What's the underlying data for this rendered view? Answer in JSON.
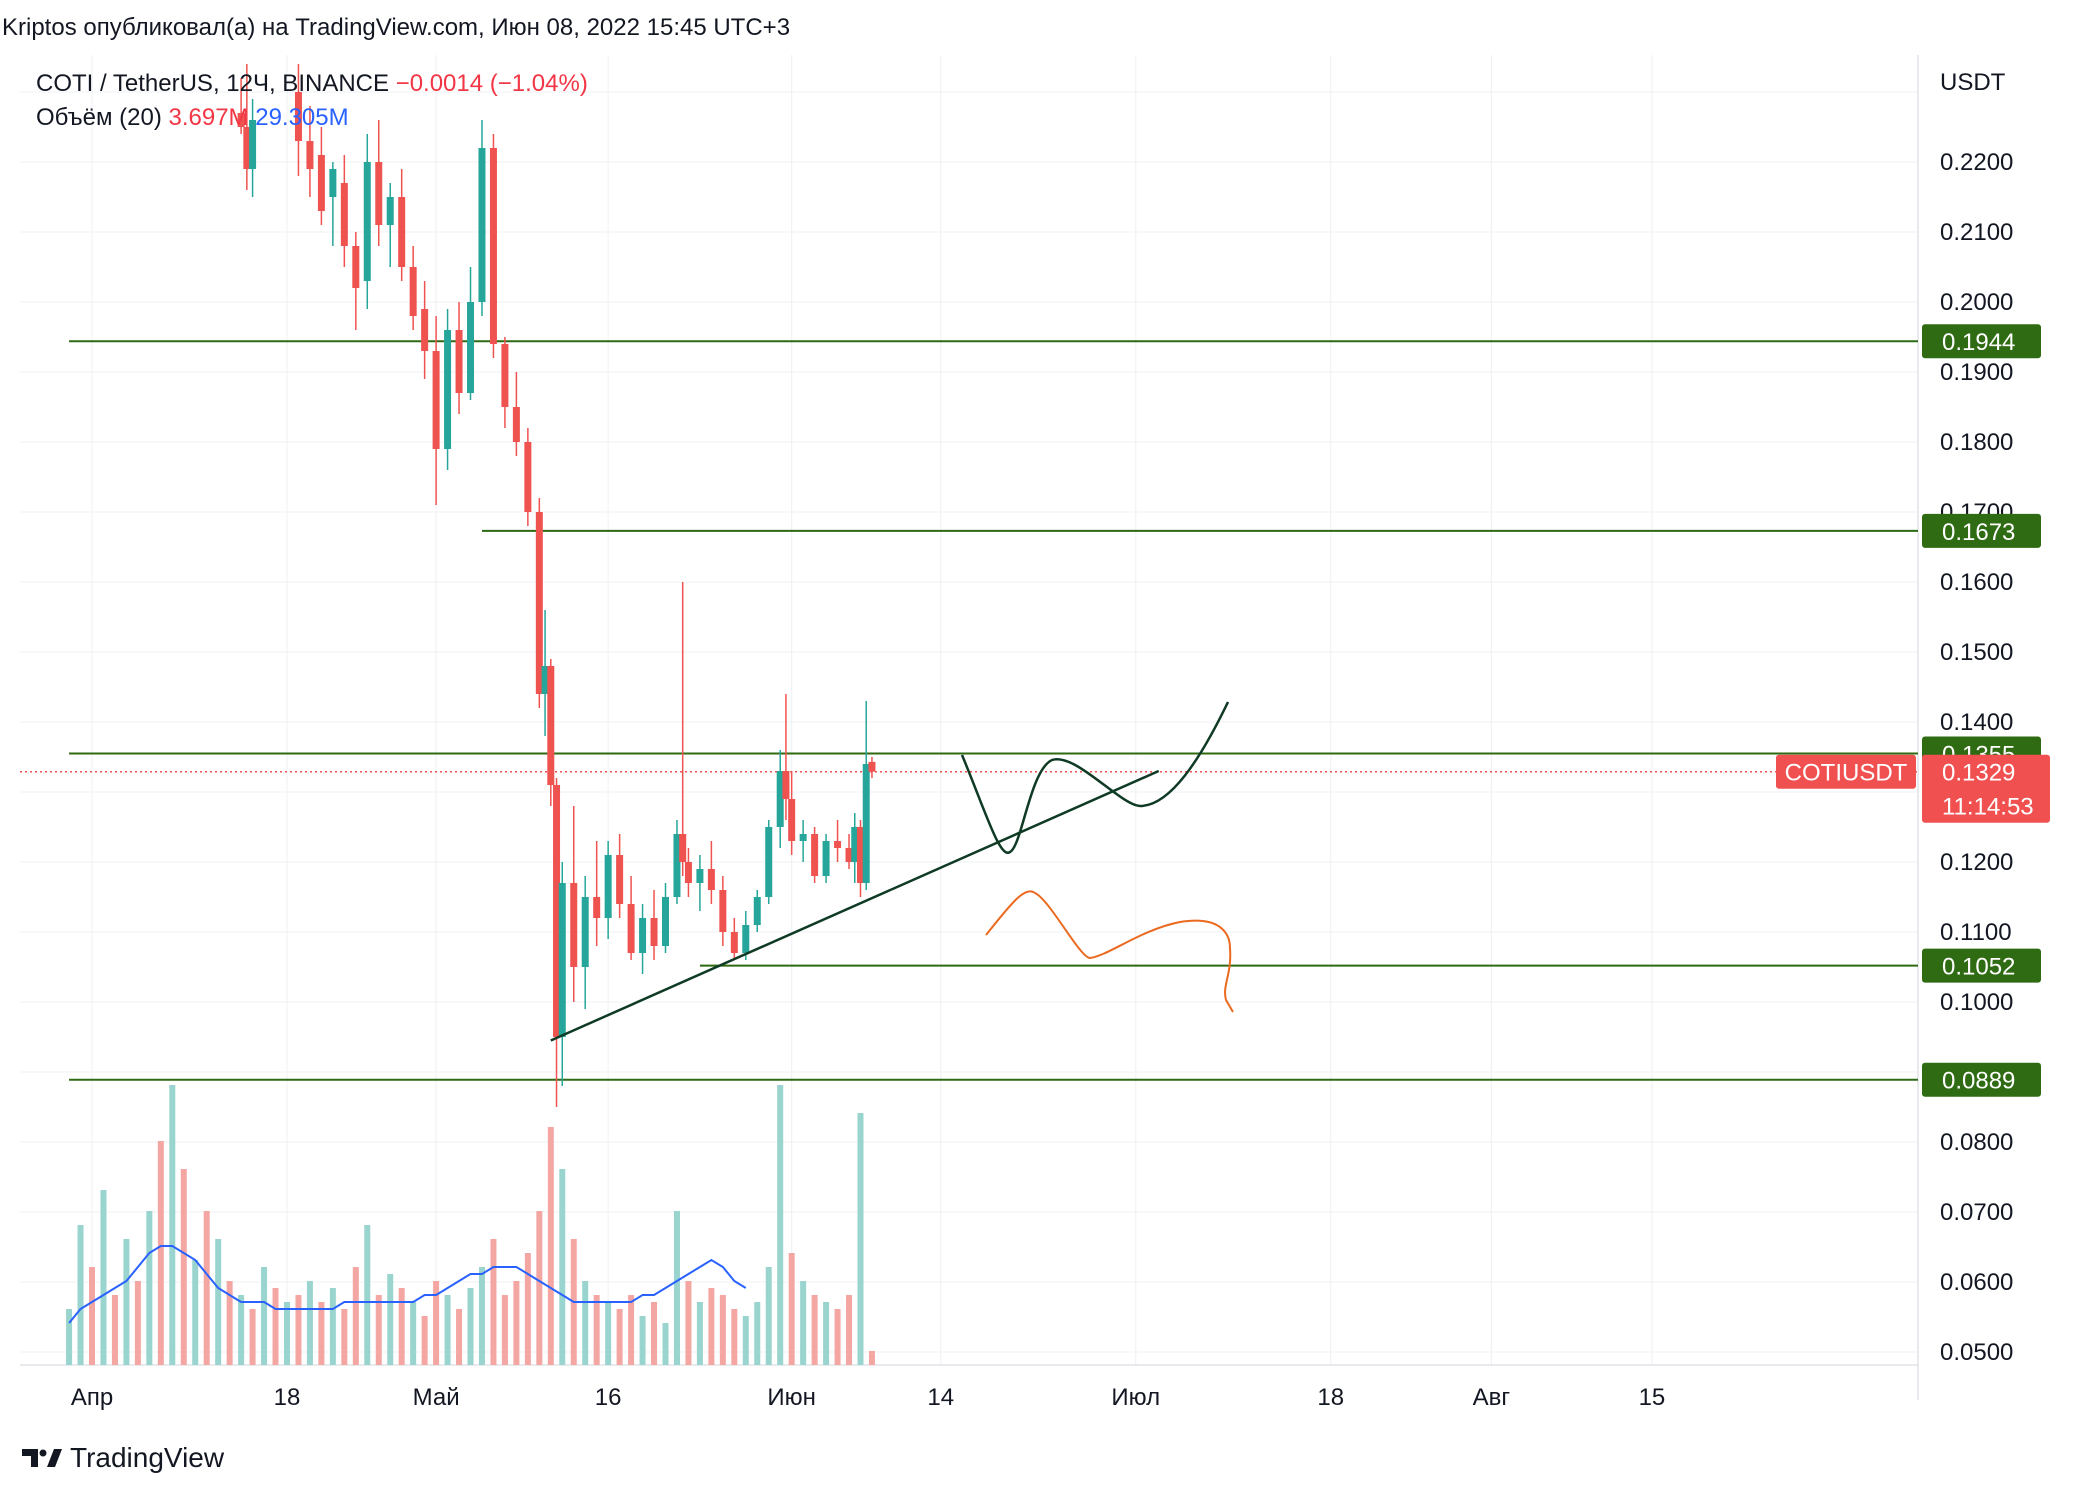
{
  "header": {
    "publisher": "Kriptos опубликовал(а) на TradingView.com, Июн 08, 2022 15:45 UTC+3"
  },
  "legend": {
    "symbol": "COTI / TetherUS, 12Ч, BINANCE",
    "change": "−0.0014 (−1.04%)",
    "volume_label": "Объём (20)",
    "volume_value": "3.697M",
    "volume_ma": "29.305M"
  },
  "footer": {
    "brand": "TradingView"
  },
  "colors": {
    "up": "#26a69a",
    "down": "#ef5350",
    "vol_up": "#9ad4ce",
    "vol_down": "#f4a6a3",
    "level": "#2e6a12",
    "level_badge": "#2f6b12",
    "price_badge": "#f0504f",
    "ma": "#2962ff",
    "grid": "#eef0f3",
    "trend_black": "#0f3a24",
    "scenario_orange": "#ea6a1f"
  },
  "chart_data": {
    "type": "candlestick",
    "symbol": "COTIUSDT",
    "axis_unit": "USDT",
    "y_ticks": [
      "0.2200",
      "0.2100",
      "0.2000",
      "0.1900",
      "0.1800",
      "0.1700",
      "0.1600",
      "0.1500",
      "0.1400",
      "0.1200",
      "0.1100",
      "0.1000",
      "0.0800",
      "0.0700",
      "0.0600",
      "0.0500"
    ],
    "ylim": [
      0.047,
      0.236
    ],
    "x_ticks": [
      "Апр",
      "18",
      "Май",
      "16",
      "Июн",
      "14",
      "Июл",
      "18",
      "Авг",
      "15"
    ],
    "x_tick_dates": [
      "2022-04-01",
      "2022-04-18",
      "2022-05-01",
      "2022-05-16",
      "2022-06-01",
      "2022-06-14",
      "2022-07-01",
      "2022-07-18",
      "2022-08-01",
      "2022-08-15"
    ],
    "horizontal_levels": [
      {
        "label": "0.1944",
        "value": 0.1944,
        "from": "2022-03-30"
      },
      {
        "label": "0.1673",
        "value": 0.1673,
        "from": "2022-05-05"
      },
      {
        "label": "0.1355",
        "value": 0.1355,
        "from": "2022-03-30"
      },
      {
        "label": "0.1052",
        "value": 0.1052,
        "from": "2022-05-24"
      },
      {
        "label": "0.0889",
        "value": 0.0889,
        "from": "2022-03-30"
      }
    ],
    "current_price": {
      "symbol": "COTIUSDT",
      "value": "0.1329",
      "countdown": "11:14:53",
      "price": 0.1329
    },
    "trendline": {
      "start": [
        "2022-05-11",
        0.0945
      ],
      "end": [
        "2022-07-03",
        0.133
      ]
    },
    "candles": [
      {
        "date": "2022-04-14",
        "o": 0.227,
        "h": 0.232,
        "l": 0.224,
        "c": 0.225
      },
      {
        "date": "2022-04-14T12",
        "o": 0.225,
        "h": 0.234,
        "l": 0.216,
        "c": 0.219
      },
      {
        "date": "2022-04-15",
        "o": 0.219,
        "h": 0.229,
        "l": 0.215,
        "c": 0.226
      },
      {
        "date": "2022-04-19",
        "o": 0.23,
        "h": 0.234,
        "l": 0.218,
        "c": 0.223
      },
      {
        "date": "2022-04-20",
        "o": 0.223,
        "h": 0.228,
        "l": 0.215,
        "c": 0.219
      },
      {
        "date": "2022-04-21",
        "o": 0.221,
        "h": 0.225,
        "l": 0.211,
        "c": 0.213
      },
      {
        "date": "2022-04-22",
        "o": 0.215,
        "h": 0.22,
        "l": 0.208,
        "c": 0.219
      },
      {
        "date": "2022-04-23",
        "o": 0.217,
        "h": 0.221,
        "l": 0.205,
        "c": 0.208
      },
      {
        "date": "2022-04-24",
        "o": 0.208,
        "h": 0.21,
        "l": 0.196,
        "c": 0.202
      },
      {
        "date": "2022-04-25",
        "o": 0.203,
        "h": 0.224,
        "l": 0.199,
        "c": 0.22
      },
      {
        "date": "2022-04-26",
        "o": 0.22,
        "h": 0.226,
        "l": 0.208,
        "c": 0.211
      },
      {
        "date": "2022-04-27",
        "o": 0.211,
        "h": 0.217,
        "l": 0.205,
        "c": 0.215
      },
      {
        "date": "2022-04-28",
        "o": 0.215,
        "h": 0.219,
        "l": 0.203,
        "c": 0.205
      },
      {
        "date": "2022-04-29",
        "o": 0.205,
        "h": 0.208,
        "l": 0.196,
        "c": 0.198
      },
      {
        "date": "2022-04-30",
        "o": 0.199,
        "h": 0.203,
        "l": 0.189,
        "c": 0.193
      },
      {
        "date": "2022-05-01",
        "o": 0.193,
        "h": 0.198,
        "l": 0.171,
        "c": 0.179
      },
      {
        "date": "2022-05-02",
        "o": 0.179,
        "h": 0.199,
        "l": 0.176,
        "c": 0.196
      },
      {
        "date": "2022-05-03",
        "o": 0.196,
        "h": 0.2,
        "l": 0.184,
        "c": 0.187
      },
      {
        "date": "2022-05-04",
        "o": 0.187,
        "h": 0.205,
        "l": 0.186,
        "c": 0.2
      },
      {
        "date": "2022-05-05",
        "o": 0.2,
        "h": 0.226,
        "l": 0.198,
        "c": 0.222
      },
      {
        "date": "2022-05-06",
        "o": 0.222,
        "h": 0.224,
        "l": 0.192,
        "c": 0.194
      },
      {
        "date": "2022-05-07",
        "o": 0.194,
        "h": 0.195,
        "l": 0.182,
        "c": 0.185
      },
      {
        "date": "2022-05-08",
        "o": 0.185,
        "h": 0.19,
        "l": 0.178,
        "c": 0.18
      },
      {
        "date": "2022-05-09",
        "o": 0.18,
        "h": 0.182,
        "l": 0.168,
        "c": 0.17
      },
      {
        "date": "2022-05-10",
        "o": 0.17,
        "h": 0.172,
        "l": 0.142,
        "c": 0.144
      },
      {
        "date": "2022-05-10T12",
        "o": 0.144,
        "h": 0.156,
        "l": 0.138,
        "c": 0.148
      },
      {
        "date": "2022-05-11",
        "o": 0.148,
        "h": 0.149,
        "l": 0.128,
        "c": 0.131
      },
      {
        "date": "2022-05-11T12",
        "o": 0.131,
        "h": 0.132,
        "l": 0.085,
        "c": 0.095
      },
      {
        "date": "2022-05-12",
        "o": 0.095,
        "h": 0.12,
        "l": 0.088,
        "c": 0.117
      },
      {
        "date": "2022-05-13",
        "o": 0.117,
        "h": 0.128,
        "l": 0.1,
        "c": 0.105
      },
      {
        "date": "2022-05-14",
        "o": 0.105,
        "h": 0.118,
        "l": 0.099,
        "c": 0.115
      },
      {
        "date": "2022-05-15",
        "o": 0.115,
        "h": 0.123,
        "l": 0.108,
        "c": 0.112
      },
      {
        "date": "2022-05-16",
        "o": 0.112,
        "h": 0.123,
        "l": 0.109,
        "c": 0.121
      },
      {
        "date": "2022-05-17",
        "o": 0.121,
        "h": 0.124,
        "l": 0.112,
        "c": 0.114
      },
      {
        "date": "2022-05-18",
        "o": 0.114,
        "h": 0.118,
        "l": 0.106,
        "c": 0.107
      },
      {
        "date": "2022-05-19",
        "o": 0.107,
        "h": 0.114,
        "l": 0.104,
        "c": 0.112
      },
      {
        "date": "2022-05-20",
        "o": 0.112,
        "h": 0.116,
        "l": 0.106,
        "c": 0.108
      },
      {
        "date": "2022-05-21",
        "o": 0.108,
        "h": 0.117,
        "l": 0.107,
        "c": 0.115
      },
      {
        "date": "2022-05-22",
        "o": 0.115,
        "h": 0.126,
        "l": 0.114,
        "c": 0.124
      },
      {
        "date": "2022-05-22T12",
        "o": 0.124,
        "h": 0.16,
        "l": 0.118,
        "c": 0.12
      },
      {
        "date": "2022-05-23",
        "o": 0.12,
        "h": 0.122,
        "l": 0.115,
        "c": 0.117
      },
      {
        "date": "2022-05-24",
        "o": 0.117,
        "h": 0.121,
        "l": 0.113,
        "c": 0.119
      },
      {
        "date": "2022-05-25",
        "o": 0.119,
        "h": 0.123,
        "l": 0.114,
        "c": 0.116
      },
      {
        "date": "2022-05-26",
        "o": 0.116,
        "h": 0.118,
        "l": 0.108,
        "c": 0.11
      },
      {
        "date": "2022-05-27",
        "o": 0.11,
        "h": 0.112,
        "l": 0.106,
        "c": 0.107
      },
      {
        "date": "2022-05-28",
        "o": 0.107,
        "h": 0.113,
        "l": 0.106,
        "c": 0.111
      },
      {
        "date": "2022-05-29",
        "o": 0.111,
        "h": 0.116,
        "l": 0.11,
        "c": 0.115
      },
      {
        "date": "2022-05-30",
        "o": 0.115,
        "h": 0.126,
        "l": 0.114,
        "c": 0.125
      },
      {
        "date": "2022-05-31",
        "o": 0.125,
        "h": 0.136,
        "l": 0.122,
        "c": 0.133
      },
      {
        "date": "2022-05-31T12",
        "o": 0.133,
        "h": 0.144,
        "l": 0.126,
        "c": 0.129
      },
      {
        "date": "2022-06-01",
        "o": 0.129,
        "h": 0.133,
        "l": 0.121,
        "c": 0.123
      },
      {
        "date": "2022-06-02",
        "o": 0.123,
        "h": 0.126,
        "l": 0.12,
        "c": 0.124
      },
      {
        "date": "2022-06-03",
        "o": 0.124,
        "h": 0.125,
        "l": 0.117,
        "c": 0.118
      },
      {
        "date": "2022-06-04",
        "o": 0.118,
        "h": 0.124,
        "l": 0.117,
        "c": 0.123
      },
      {
        "date": "2022-06-05",
        "o": 0.123,
        "h": 0.126,
        "l": 0.12,
        "c": 0.122
      },
      {
        "date": "2022-06-06",
        "o": 0.122,
        "h": 0.124,
        "l": 0.119,
        "c": 0.12
      },
      {
        "date": "2022-06-06T12",
        "o": 0.12,
        "h": 0.127,
        "l": 0.117,
        "c": 0.125
      },
      {
        "date": "2022-06-07",
        "o": 0.125,
        "h": 0.126,
        "l": 0.115,
        "c": 0.117
      },
      {
        "date": "2022-06-07T12",
        "o": 0.117,
        "h": 0.143,
        "l": 0.116,
        "c": 0.134
      },
      {
        "date": "2022-06-08",
        "o": 0.1343,
        "h": 0.135,
        "l": 0.132,
        "c": 0.1329
      }
    ],
    "volume": {
      "label": "Объём (20)",
      "ma_period": 20
    },
    "volume_bars": [
      {
        "date": "2022-03-30",
        "v": 8,
        "up": true
      },
      {
        "date": "2022-03-31",
        "v": 20,
        "up": true
      },
      {
        "date": "2022-04-01",
        "v": 14,
        "up": false
      },
      {
        "date": "2022-04-02",
        "v": 25,
        "up": true
      },
      {
        "date": "2022-04-03",
        "v": 10,
        "up": false
      },
      {
        "date": "2022-04-04",
        "v": 18,
        "up": true
      },
      {
        "date": "2022-04-05",
        "v": 12,
        "up": false
      },
      {
        "date": "2022-04-06",
        "v": 22,
        "up": true
      },
      {
        "date": "2022-04-07",
        "v": 32,
        "up": false
      },
      {
        "date": "2022-04-08",
        "v": 40,
        "up": true
      },
      {
        "date": "2022-04-09",
        "v": 28,
        "up": false
      },
      {
        "date": "2022-04-10",
        "v": 15,
        "up": true
      },
      {
        "date": "2022-04-11",
        "v": 22,
        "up": false
      },
      {
        "date": "2022-04-12",
        "v": 18,
        "up": true
      },
      {
        "date": "2022-04-13",
        "v": 12,
        "up": false
      },
      {
        "date": "2022-04-14",
        "v": 10,
        "up": true
      },
      {
        "date": "2022-04-15",
        "v": 8,
        "up": false
      },
      {
        "date": "2022-04-16",
        "v": 14,
        "up": true
      },
      {
        "date": "2022-04-17",
        "v": 11,
        "up": false
      },
      {
        "date": "2022-04-18",
        "v": 9,
        "up": true
      },
      {
        "date": "2022-04-19",
        "v": 10,
        "up": false
      },
      {
        "date": "2022-04-20",
        "v": 12,
        "up": true
      },
      {
        "date": "2022-04-21",
        "v": 9,
        "up": false
      },
      {
        "date": "2022-04-22",
        "v": 11,
        "up": true
      },
      {
        "date": "2022-04-23",
        "v": 8,
        "up": false
      },
      {
        "date": "2022-04-24",
        "v": 14,
        "up": false
      },
      {
        "date": "2022-04-25",
        "v": 20,
        "up": true
      },
      {
        "date": "2022-04-26",
        "v": 10,
        "up": false
      },
      {
        "date": "2022-04-27",
        "v": 13,
        "up": true
      },
      {
        "date": "2022-04-28",
        "v": 11,
        "up": false
      },
      {
        "date": "2022-04-29",
        "v": 9,
        "up": true
      },
      {
        "date": "2022-04-30",
        "v": 7,
        "up": false
      },
      {
        "date": "2022-05-01",
        "v": 12,
        "up": false
      },
      {
        "date": "2022-05-02",
        "v": 10,
        "up": true
      },
      {
        "date": "2022-05-03",
        "v": 8,
        "up": false
      },
      {
        "date": "2022-05-04",
        "v": 11,
        "up": true
      },
      {
        "date": "2022-05-05",
        "v": 14,
        "up": true
      },
      {
        "date": "2022-05-06",
        "v": 18,
        "up": false
      },
      {
        "date": "2022-05-07",
        "v": 10,
        "up": false
      },
      {
        "date": "2022-05-08",
        "v": 12,
        "up": false
      },
      {
        "date": "2022-05-09",
        "v": 16,
        "up": false
      },
      {
        "date": "2022-05-10",
        "v": 22,
        "up": false
      },
      {
        "date": "2022-05-11",
        "v": 34,
        "up": false
      },
      {
        "date": "2022-05-12",
        "v": 28,
        "up": true
      },
      {
        "date": "2022-05-13",
        "v": 18,
        "up": false
      },
      {
        "date": "2022-05-14",
        "v": 12,
        "up": true
      },
      {
        "date": "2022-05-15",
        "v": 10,
        "up": false
      },
      {
        "date": "2022-05-16",
        "v": 9,
        "up": true
      },
      {
        "date": "2022-05-17",
        "v": 8,
        "up": false
      },
      {
        "date": "2022-05-18",
        "v": 10,
        "up": false
      },
      {
        "date": "2022-05-19",
        "v": 7,
        "up": true
      },
      {
        "date": "2022-05-20",
        "v": 9,
        "up": false
      },
      {
        "date": "2022-05-21",
        "v": 6,
        "up": true
      },
      {
        "date": "2022-05-22",
        "v": 22,
        "up": true
      },
      {
        "date": "2022-05-23",
        "v": 12,
        "up": false
      },
      {
        "date": "2022-05-24",
        "v": 9,
        "up": true
      },
      {
        "date": "2022-05-25",
        "v": 11,
        "up": false
      },
      {
        "date": "2022-05-26",
        "v": 10,
        "up": false
      },
      {
        "date": "2022-05-27",
        "v": 8,
        "up": false
      },
      {
        "date": "2022-05-28",
        "v": 7,
        "up": true
      },
      {
        "date": "2022-05-29",
        "v": 9,
        "up": true
      },
      {
        "date": "2022-05-30",
        "v": 14,
        "up": true
      },
      {
        "date": "2022-05-31",
        "v": 40,
        "up": true
      },
      {
        "date": "2022-06-01",
        "v": 16,
        "up": false
      },
      {
        "date": "2022-06-02",
        "v": 12,
        "up": true
      },
      {
        "date": "2022-06-03",
        "v": 10,
        "up": false
      },
      {
        "date": "2022-06-04",
        "v": 9,
        "up": true
      },
      {
        "date": "2022-06-05",
        "v": 8,
        "up": false
      },
      {
        "date": "2022-06-06",
        "v": 10,
        "up": false
      },
      {
        "date": "2022-06-07",
        "v": 36,
        "up": true
      },
      {
        "date": "2022-06-08",
        "v": 2,
        "up": false
      }
    ],
    "volume_ma_line": [
      6,
      8,
      9,
      10,
      11,
      12,
      14,
      16,
      17,
      17,
      16,
      15,
      13,
      11,
      10,
      9,
      9,
      9,
      8,
      8,
      8,
      8,
      8,
      8,
      9,
      9,
      9,
      9,
      9,
      9,
      9,
      10,
      10,
      11,
      12,
      13,
      13,
      14,
      14,
      14,
      13,
      12,
      11,
      10,
      9,
      9,
      9,
      9,
      9,
      9,
      10,
      10,
      11,
      12,
      13,
      14,
      15,
      14,
      12,
      11
    ]
  }
}
